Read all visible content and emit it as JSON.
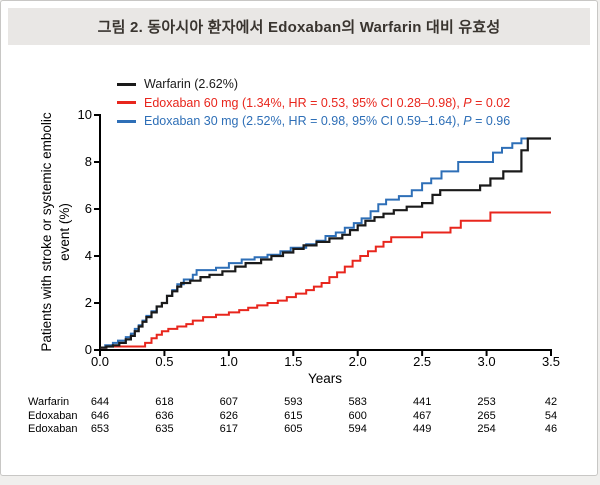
{
  "figure": {
    "title": "그림 2. 동아시아 환자에서 Edoxaban의 Warfarin 대비 유효성"
  },
  "colors": {
    "warfarin": "#1a1a1a",
    "edoxaban60": "#e8261d",
    "edoxaban30": "#2e6fb7",
    "axis": "#000000"
  },
  "legend": [
    {
      "pre": "Warfarin (2.62%)",
      "p": "",
      "post": "",
      "color": "#1a1a1a"
    },
    {
      "pre": "Edoxaban 60 mg (1.34%, HR = 0.53, 95% CI 0.28–0.98), ",
      "p": "P",
      "post": " = 0.02",
      "color": "#e8261d"
    },
    {
      "pre": "Edoxaban 30 mg (2.52%, HR = 0.98, 95% CI 0.59–1.64), ",
      "p": "P",
      "post": " = 0.96",
      "color": "#2e6fb7"
    }
  ],
  "chart_data": {
    "type": "line",
    "subtype": "kaplan-meier-step",
    "title": "",
    "xlabel": "Years",
    "ylabel": "Patients with stroke or systemic embolic event (%)",
    "xlim": [
      0,
      3.5
    ],
    "ylim": [
      0,
      10
    ],
    "grid": false,
    "legend_position": "top-left-inside",
    "xticks": [
      "0.0",
      "0.5",
      "1.0",
      "1.5",
      "2.0",
      "2.5",
      "3.0",
      "3.5"
    ],
    "yticks": [
      "0",
      "2",
      "4",
      "6",
      "8",
      "10"
    ],
    "series": [
      {
        "name": "Warfarin",
        "color": "#1a1a1a",
        "points": [
          [
            0,
            0.1
          ],
          [
            0.05,
            0.15
          ],
          [
            0.1,
            0.2
          ],
          [
            0.15,
            0.3
          ],
          [
            0.2,
            0.45
          ],
          [
            0.24,
            0.6
          ],
          [
            0.27,
            0.8
          ],
          [
            0.3,
            1.0
          ],
          [
            0.33,
            1.2
          ],
          [
            0.36,
            1.4
          ],
          [
            0.4,
            1.6
          ],
          [
            0.44,
            1.85
          ],
          [
            0.48,
            2.0
          ],
          [
            0.52,
            2.3
          ],
          [
            0.56,
            2.5
          ],
          [
            0.6,
            2.7
          ],
          [
            0.63,
            2.85
          ],
          [
            0.7,
            2.95
          ],
          [
            0.78,
            3.1
          ],
          [
            0.85,
            3.2
          ],
          [
            0.95,
            3.35
          ],
          [
            1.05,
            3.55
          ],
          [
            1.13,
            3.7
          ],
          [
            1.25,
            3.85
          ],
          [
            1.33,
            4.0
          ],
          [
            1.42,
            4.15
          ],
          [
            1.5,
            4.3
          ],
          [
            1.58,
            4.45
          ],
          [
            1.68,
            4.6
          ],
          [
            1.78,
            4.75
          ],
          [
            1.88,
            4.9
          ],
          [
            1.94,
            5.1
          ],
          [
            2.0,
            5.3
          ],
          [
            2.06,
            5.5
          ],
          [
            2.13,
            5.65
          ],
          [
            2.2,
            5.8
          ],
          [
            2.28,
            5.95
          ],
          [
            2.38,
            6.1
          ],
          [
            2.5,
            6.25
          ],
          [
            2.58,
            6.6
          ],
          [
            2.64,
            6.8
          ],
          [
            2.95,
            7.0
          ],
          [
            3.03,
            7.3
          ],
          [
            3.13,
            7.6
          ],
          [
            3.27,
            8.5
          ],
          [
            3.32,
            9.0
          ],
          [
            3.5,
            9.0
          ]
        ]
      },
      {
        "name": "Edoxaban 60 mg",
        "color": "#e8261d",
        "points": [
          [
            0,
            0.1
          ],
          [
            0.05,
            0.15
          ],
          [
            0.35,
            0.3
          ],
          [
            0.4,
            0.5
          ],
          [
            0.44,
            0.65
          ],
          [
            0.48,
            0.8
          ],
          [
            0.53,
            0.9
          ],
          [
            0.6,
            1.0
          ],
          [
            0.67,
            1.1
          ],
          [
            0.72,
            1.25
          ],
          [
            0.8,
            1.4
          ],
          [
            0.9,
            1.5
          ],
          [
            1.0,
            1.6
          ],
          [
            1.08,
            1.7
          ],
          [
            1.15,
            1.8
          ],
          [
            1.22,
            1.9
          ],
          [
            1.3,
            2.0
          ],
          [
            1.38,
            2.1
          ],
          [
            1.45,
            2.25
          ],
          [
            1.52,
            2.4
          ],
          [
            1.6,
            2.55
          ],
          [
            1.66,
            2.7
          ],
          [
            1.72,
            2.85
          ],
          [
            1.78,
            3.1
          ],
          [
            1.84,
            3.3
          ],
          [
            1.9,
            3.55
          ],
          [
            1.96,
            3.8
          ],
          [
            2.02,
            4.0
          ],
          [
            2.08,
            4.2
          ],
          [
            2.14,
            4.4
          ],
          [
            2.2,
            4.6
          ],
          [
            2.26,
            4.8
          ],
          [
            2.5,
            5.0
          ],
          [
            2.72,
            5.2
          ],
          [
            2.8,
            5.5
          ],
          [
            3.03,
            5.85
          ],
          [
            3.5,
            5.85
          ]
        ]
      },
      {
        "name": "Edoxaban 30 mg",
        "color": "#2e6fb7",
        "points": [
          [
            0,
            0.1
          ],
          [
            0.04,
            0.2
          ],
          [
            0.1,
            0.3
          ],
          [
            0.14,
            0.4
          ],
          [
            0.2,
            0.55
          ],
          [
            0.24,
            0.7
          ],
          [
            0.27,
            0.9
          ],
          [
            0.3,
            1.05
          ],
          [
            0.33,
            1.25
          ],
          [
            0.36,
            1.45
          ],
          [
            0.4,
            1.65
          ],
          [
            0.44,
            1.85
          ],
          [
            0.48,
            2.0
          ],
          [
            0.52,
            2.3
          ],
          [
            0.56,
            2.55
          ],
          [
            0.6,
            2.8
          ],
          [
            0.65,
            3.0
          ],
          [
            0.72,
            3.2
          ],
          [
            0.75,
            3.4
          ],
          [
            0.9,
            3.5
          ],
          [
            1.0,
            3.7
          ],
          [
            1.1,
            3.85
          ],
          [
            1.2,
            3.95
          ],
          [
            1.3,
            4.05
          ],
          [
            1.4,
            4.2
          ],
          [
            1.48,
            4.35
          ],
          [
            1.6,
            4.5
          ],
          [
            1.68,
            4.65
          ],
          [
            1.75,
            4.85
          ],
          [
            1.83,
            5.0
          ],
          [
            1.9,
            5.2
          ],
          [
            1.97,
            5.4
          ],
          [
            2.03,
            5.6
          ],
          [
            2.1,
            5.9
          ],
          [
            2.16,
            6.2
          ],
          [
            2.22,
            6.4
          ],
          [
            2.32,
            6.55
          ],
          [
            2.42,
            6.8
          ],
          [
            2.5,
            7.1
          ],
          [
            2.57,
            7.3
          ],
          [
            2.65,
            7.6
          ],
          [
            2.78,
            8.0
          ],
          [
            3.05,
            8.4
          ],
          [
            3.12,
            8.6
          ],
          [
            3.2,
            8.8
          ],
          [
            3.27,
            9.0
          ],
          [
            3.5,
            9.0
          ]
        ]
      }
    ]
  },
  "risk_table": {
    "rows": [
      {
        "label": "Warfarin",
        "values": [
          "644",
          "618",
          "607",
          "593",
          "583",
          "441",
          "253",
          "42"
        ]
      },
      {
        "label": "Edoxaban",
        "values": [
          "646",
          "636",
          "626",
          "615",
          "600",
          "467",
          "265",
          "54"
        ]
      },
      {
        "label": "Edoxaban",
        "values": [
          "653",
          "635",
          "617",
          "605",
          "594",
          "449",
          "254",
          "46"
        ]
      }
    ]
  }
}
